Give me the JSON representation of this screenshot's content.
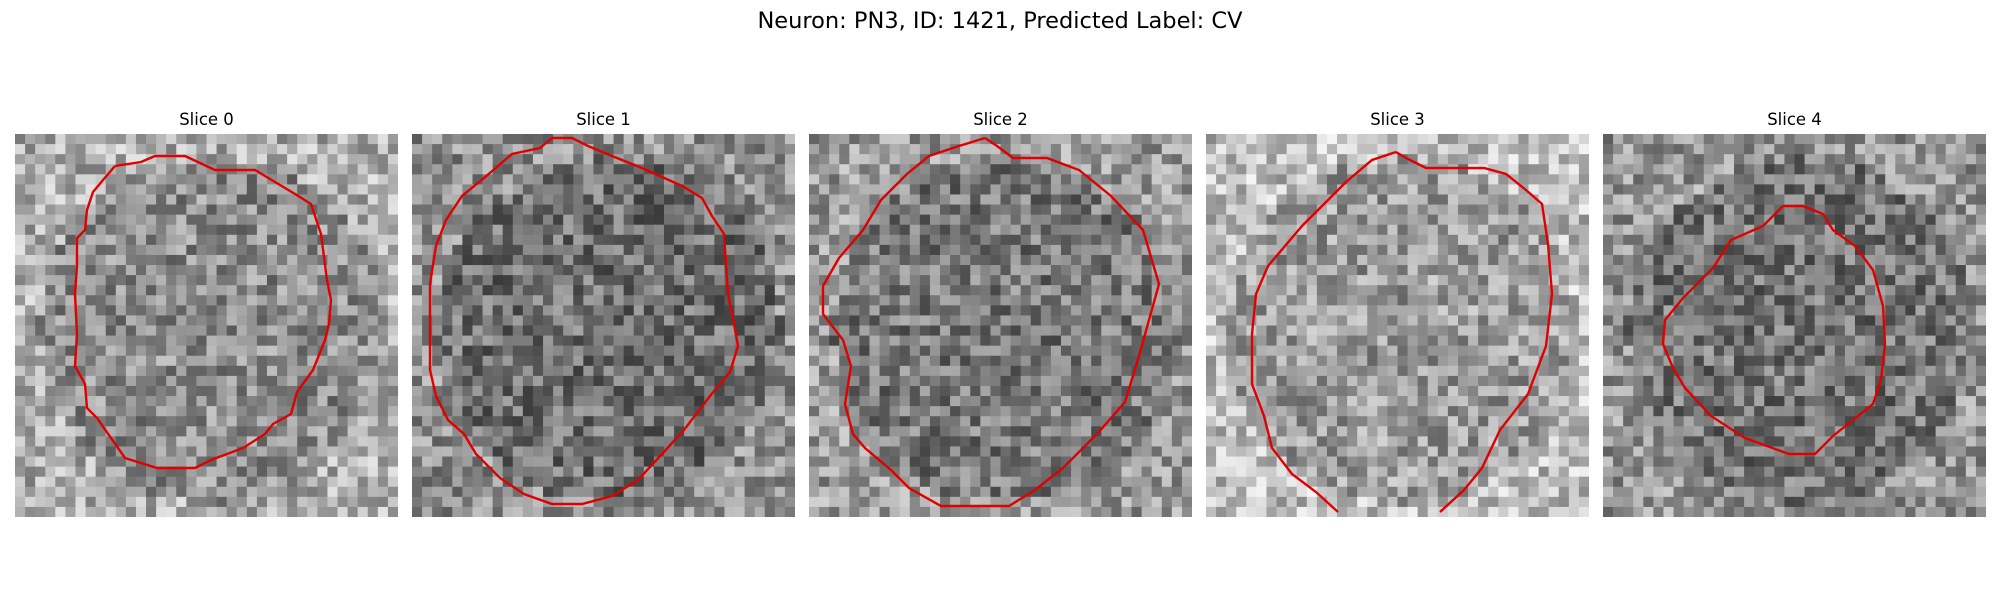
{
  "figure": {
    "title": "Neuron: PN3, ID: 1421, Predicted Label: CV"
  },
  "panels": [
    {
      "title": "Slice 0",
      "mask_color": "#ff0000"
    },
    {
      "title": "Slice 1",
      "mask_color": "#ff0000"
    },
    {
      "title": "Slice 2",
      "mask_color": "#ff0000"
    },
    {
      "title": "Slice 3",
      "mask_color": "#ff0000"
    },
    {
      "title": "Slice 4",
      "mask_color": "#ff0000"
    }
  ]
}
